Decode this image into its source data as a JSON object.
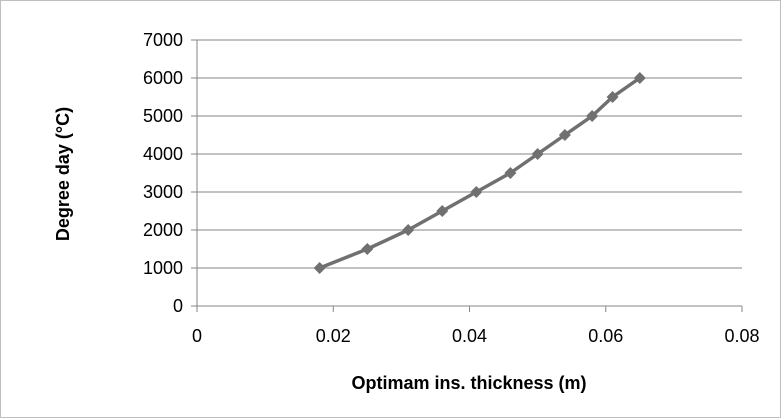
{
  "chart_data": {
    "type": "line",
    "title": "",
    "xlabel": "Optimam ins. thickness (m)",
    "ylabel": "Degree day (°C)",
    "xlim": [
      0,
      0.08
    ],
    "ylim": [
      0,
      7000
    ],
    "xticks": [
      "0",
      "0.02",
      "0.04",
      "0.06",
      "0.08"
    ],
    "yticks": [
      "0",
      "1000",
      "2000",
      "3000",
      "4000",
      "5000",
      "6000",
      "7000"
    ],
    "grid": "horizontal",
    "legend": "none",
    "series": [
      {
        "x": [
          0.018,
          0.025,
          0.031,
          0.036,
          0.041,
          0.046,
          0.05,
          0.054,
          0.058,
          0.061,
          0.065
        ],
        "y": [
          1000,
          1500,
          2000,
          2500,
          3000,
          3500,
          4000,
          4500,
          5000,
          5500,
          6000
        ],
        "color": "#707070",
        "marker": "diamond"
      }
    ]
  }
}
